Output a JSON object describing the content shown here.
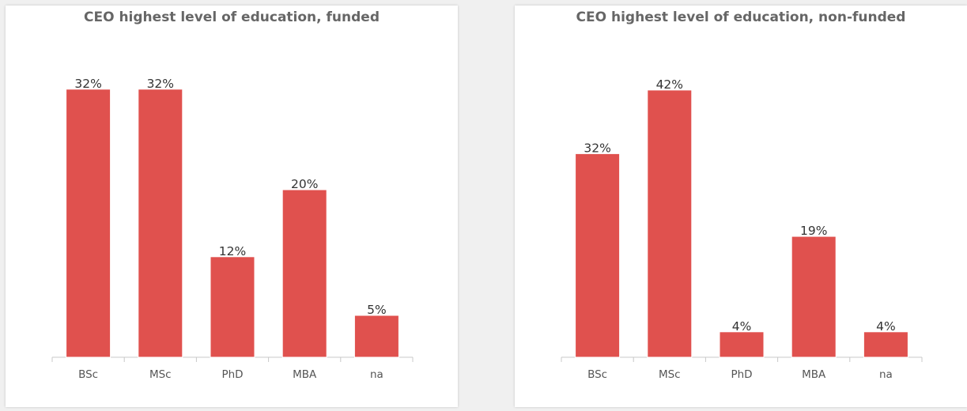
{
  "colors": {
    "bar": "#e0514e",
    "bar_outline": "#ffffff",
    "axis": "#c8c8c8",
    "title": "#666666",
    "label": "#333333",
    "tick": "#555555",
    "background": "#ffffff"
  },
  "chart_data": [
    {
      "type": "bar",
      "title": "CEO highest level of education, funded",
      "xlabel": "",
      "ylabel": "",
      "categories": [
        "BSc",
        "MSc",
        "PhD",
        "MBA",
        "na"
      ],
      "values": [
        32,
        32,
        12,
        20,
        5
      ],
      "value_labels": [
        "32%",
        "32%",
        "12%",
        "20%",
        "5%"
      ],
      "grid": false,
      "legend": "none"
    },
    {
      "type": "bar",
      "title": "CEO highest level of education, non-funded",
      "xlabel": "",
      "ylabel": "",
      "categories": [
        "BSc",
        "MSc",
        "PhD",
        "MBA",
        "na"
      ],
      "values": [
        32,
        42,
        4,
        19,
        4
      ],
      "value_labels": [
        "32%",
        "42%",
        "4%",
        "19%",
        "4%"
      ],
      "grid": false,
      "legend": "none"
    }
  ]
}
